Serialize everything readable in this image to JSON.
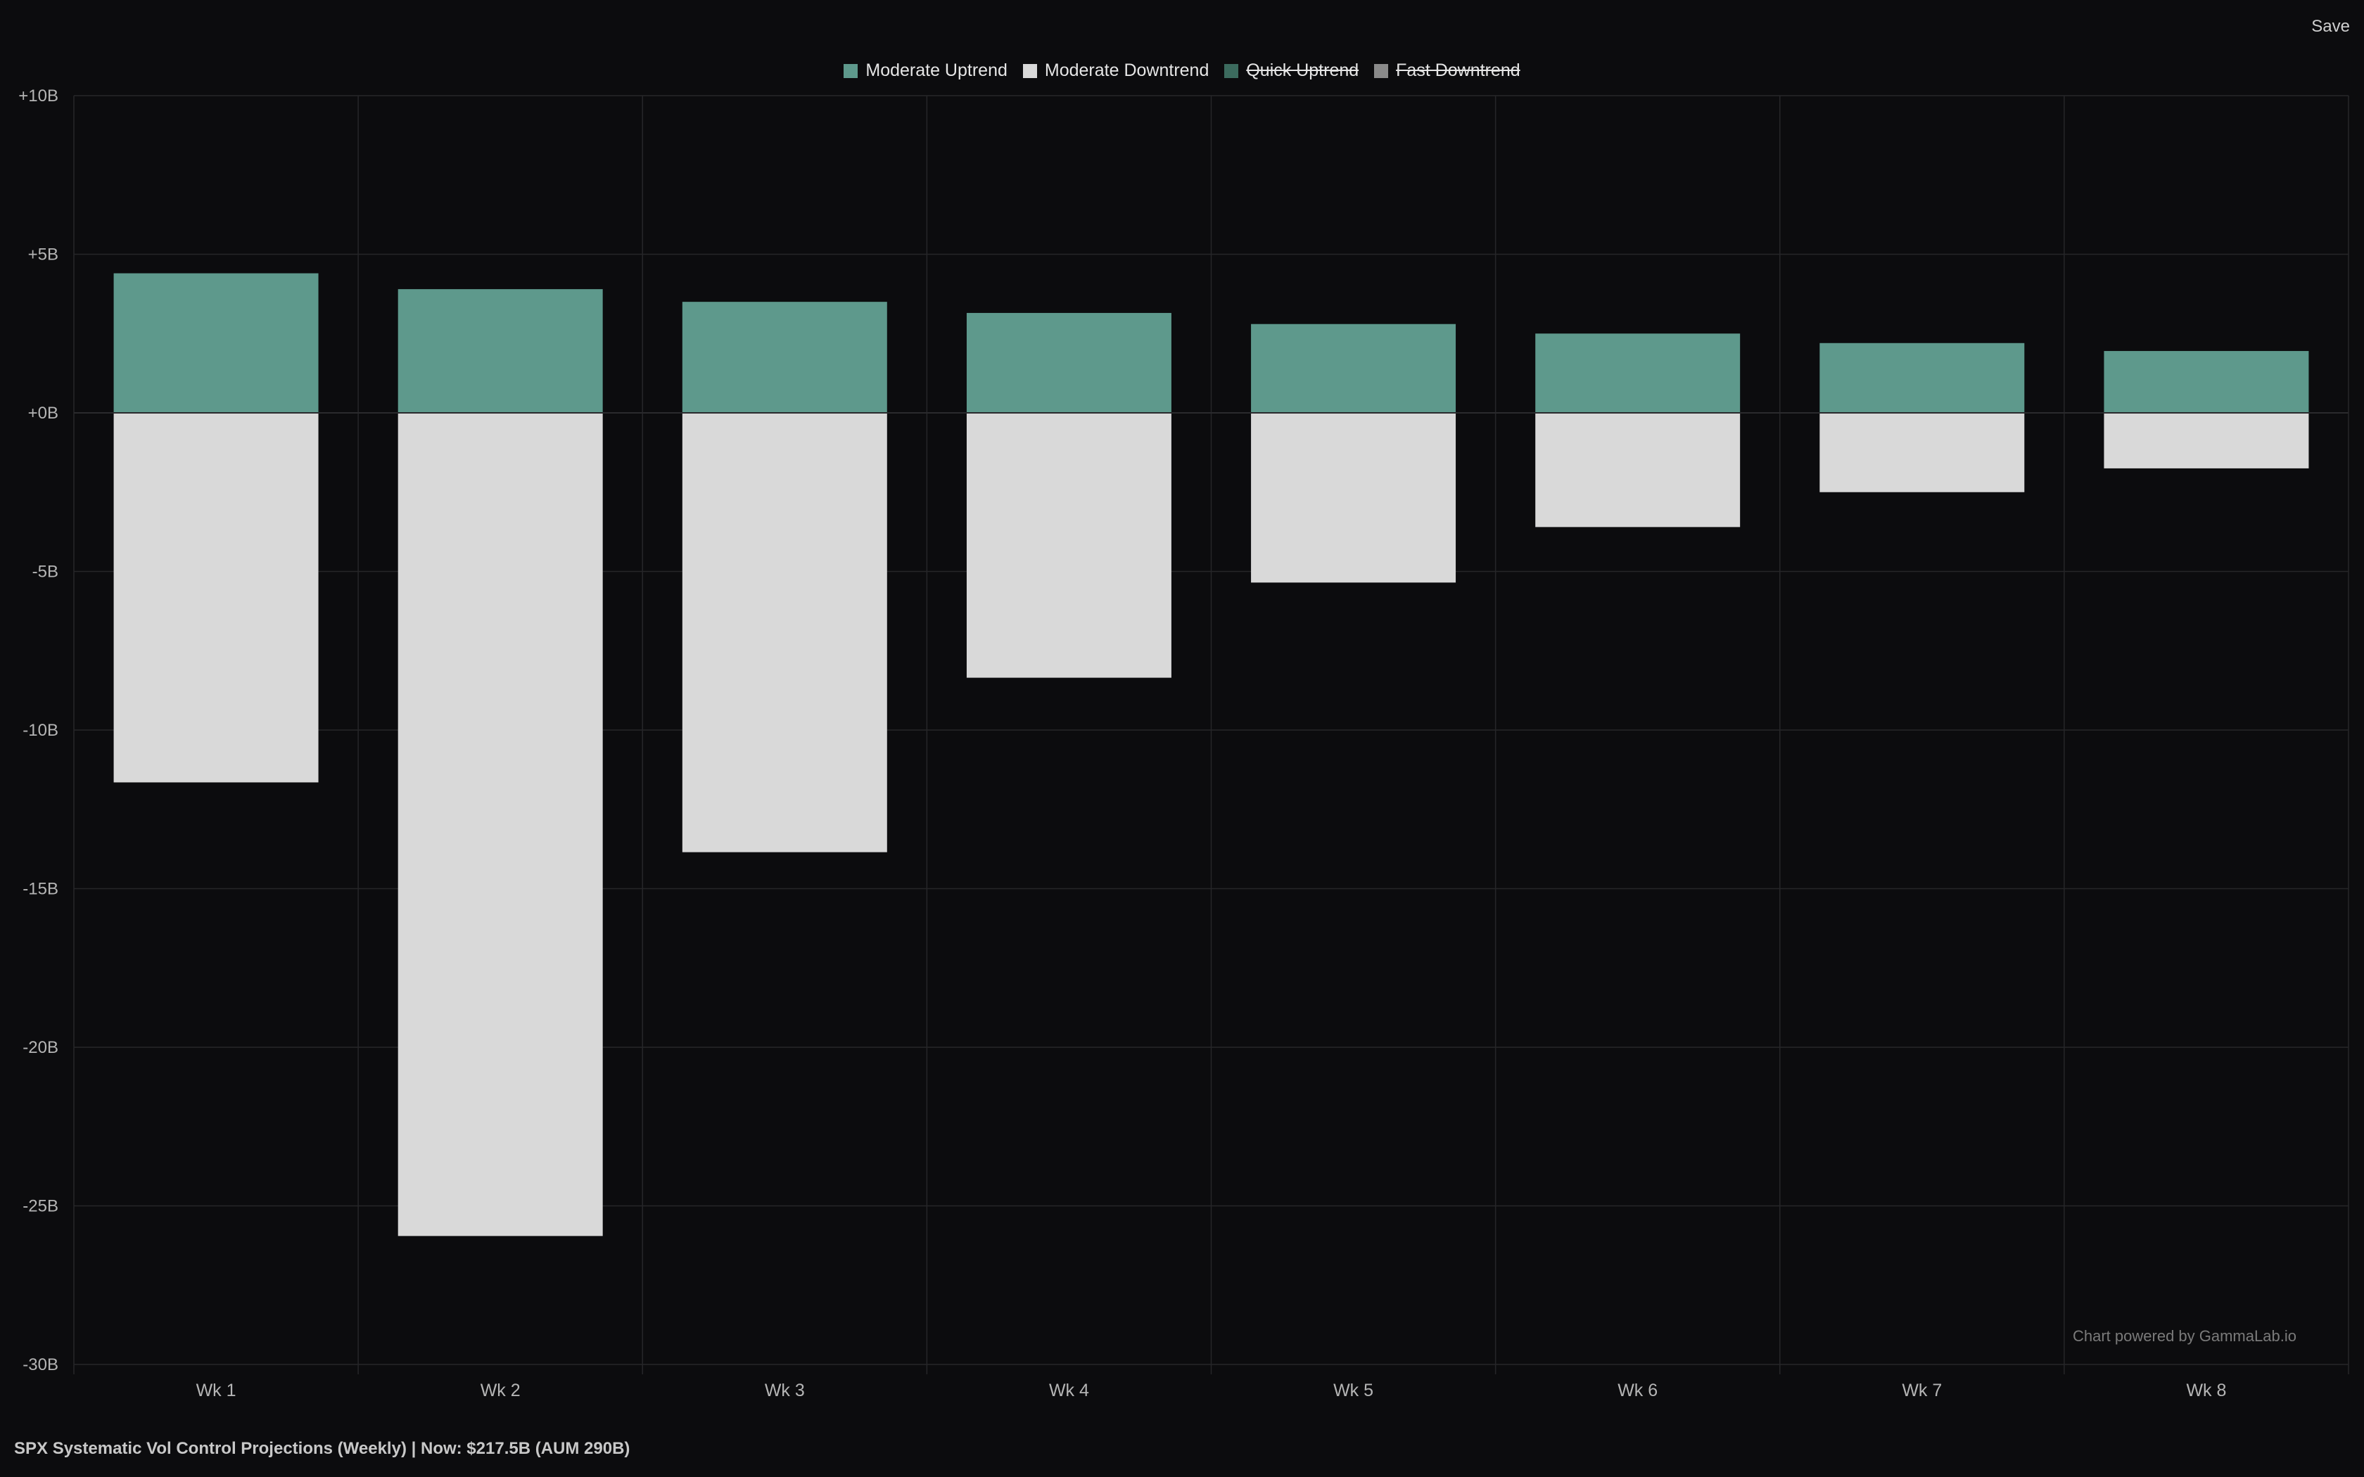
{
  "toolbar": {
    "save_label": "Save"
  },
  "colors": {
    "background": "#0c0c0e",
    "grid": "#262629",
    "moderate_uptrend": "#5e998c",
    "moderate_downtrend": "#d9d9d9",
    "quick_uptrend": "#3c6b5e",
    "fast_downtrend": "#8a8a8a"
  },
  "legend": [
    {
      "label": "Moderate Uptrend",
      "color": "#5e998c",
      "hidden": false
    },
    {
      "label": "Moderate Downtrend",
      "color": "#d9d9d9",
      "hidden": false
    },
    {
      "label": "Quick Uptrend",
      "color": "#3c6b5e",
      "hidden": true
    },
    {
      "label": "Fast Downtrend",
      "color": "#8a8a8a",
      "hidden": true
    }
  ],
  "chart_data": {
    "type": "bar",
    "categories": [
      "Wk 1",
      "Wk 2",
      "Wk 3",
      "Wk 4",
      "Wk 5",
      "Wk 6",
      "Wk 7",
      "Wk 8"
    ],
    "series": [
      {
        "name": "Moderate Uptrend",
        "values": [
          4.4,
          3.9,
          3.5,
          3.15,
          2.8,
          2.5,
          2.2,
          1.95
        ]
      },
      {
        "name": "Moderate Downtrend",
        "values": [
          -11.65,
          -25.95,
          -13.85,
          -8.35,
          -5.35,
          -3.6,
          -2.5,
          -1.75
        ]
      }
    ],
    "stacked": true,
    "ylim": [
      -30,
      10
    ],
    "yticks": [
      10,
      5,
      0,
      -5,
      -10,
      -15,
      -20,
      -25,
      -30
    ],
    "ytick_labels": [
      "+10B",
      "+5B",
      "+0B",
      "-5B",
      "-10B",
      "-15B",
      "-20B",
      "-25B",
      "-30B"
    ],
    "grid": true,
    "legend_position": "top-center"
  },
  "watermark": "Chart powered by GammaLab.io",
  "footer_title": "SPX Systematic Vol Control Projections (Weekly) | Now: $217.5B (AUM 290B)"
}
